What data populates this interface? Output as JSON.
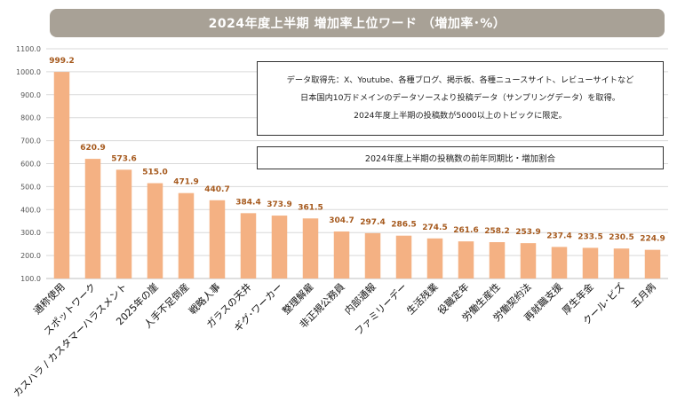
{
  "title": "2024年度上半期  増加率上位ワード （増加率･%）",
  "note": {
    "lines": [
      "データ取得先：X、Youtube、各種ブログ、掲示板、各種ニュースサイト、レビューサイトなど",
      "日本国内10万ドメインのデータソースより投稿データ（サンプリングデータ）を取得。",
      "2024年度上半期の投稿数が5000以上のトピックに限定。"
    ]
  },
  "subnote": "2024年度上半期の投稿数の前年同期比・増加割合",
  "colors": {
    "bar": "#f4b183",
    "label": "#a65a1e",
    "axis_text": "#555555",
    "grid": "#d9d9d9"
  },
  "chart_data": {
    "type": "bar",
    "title": "2024年度上半期  増加率上位ワード （増加率･%）",
    "categories": [
      "通称使用",
      "スポットワーク",
      "カスハラ / カスタマーハラスメント",
      "2025年の崖",
      "人手不足倒産",
      "戦略人事",
      "ガラスの天井",
      "ギグ･ワーカー",
      "整理解雇",
      "非正規公務員",
      "内部通報",
      "ファミリーデー",
      "生活残業",
      "役職定年",
      "労働生産性",
      "労働契約法",
      "再就職支援",
      "厚生年金",
      "クール･ビズ",
      "五月病"
    ],
    "values": [
      999.2,
      620.9,
      573.6,
      515.0,
      471.9,
      440.7,
      384.4,
      373.9,
      361.5,
      304.7,
      297.4,
      286.5,
      274.5,
      261.6,
      258.2,
      253.9,
      237.4,
      233.5,
      230.5,
      224.9
    ],
    "value_labels": [
      "999.2",
      "620.9",
      "573.6",
      "515.0",
      "471.9",
      "440.7",
      "384.4",
      "373.9",
      "361.5",
      "304.7",
      "297.4",
      "286.5",
      "274.5",
      "261.6",
      "258.2",
      "253.9",
      "237.4",
      "233.5",
      "230.5",
      "224.9"
    ],
    "yticks": [
      "100.0",
      "200.0",
      "300.0",
      "400.0",
      "500.0",
      "600.0",
      "700.0",
      "800.0",
      "900.0",
      "1000.0",
      "1100.0"
    ],
    "ylim": [
      100,
      1100
    ],
    "xlabel": "",
    "ylabel": ""
  }
}
